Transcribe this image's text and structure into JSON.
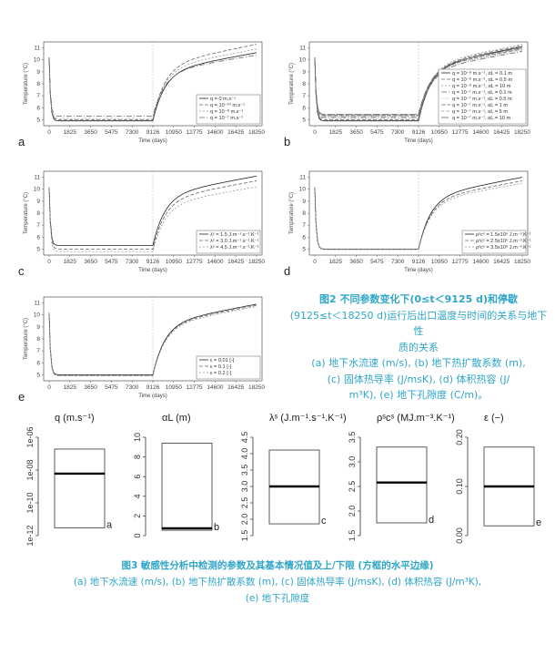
{
  "figure2": {
    "x_label": "Time (days)",
    "y_label": "Temperature (°C)",
    "x_ticks": [
      "0",
      "1825",
      "3650",
      "5475",
      "7300",
      "9126",
      "10950",
      "12775",
      "14600",
      "16425",
      "18250"
    ],
    "y_ticks": [
      "5",
      "6",
      "7",
      "8",
      "9",
      "10",
      "11"
    ],
    "panels": [
      {
        "letter": "a",
        "legend": [
          "q = 0 m.s⁻¹",
          "q = 10⁻¹⁰ m.s⁻¹",
          "q = 10⁻⁸ m.s⁻¹",
          "q = 10⁻⁷ m.s⁻¹"
        ]
      },
      {
        "letter": "b",
        "legend": [
          "q = 10⁻⁸ m.s⁻¹, αL = 0.1 m",
          "q = 10⁻⁸ m.s⁻¹, αL = 0.5 m",
          "q = 10⁻⁸ m.s⁻¹, αL = 10 m",
          "q = 10⁻⁷ m.s⁻¹, αL = 0.1 m",
          "q = 10⁻⁷ m.s⁻¹, αL = 0.5 m",
          "q = 10⁻⁷ m.s⁻¹, αL = 1 m",
          "q = 10⁻⁷ m.s⁻¹, αL = 5 m",
          "q = 10⁻⁷ m.s⁻¹, αL = 10 m"
        ]
      },
      {
        "letter": "c",
        "legend": [
          "λˢ = 1.5 J.m⁻¹.s⁻¹.K⁻¹",
          "λˢ = 3.0 J.m⁻¹.s⁻¹.K⁻¹",
          "λˢ = 4.5 J.m⁻¹.s⁻¹.K⁻¹"
        ]
      },
      {
        "letter": "d",
        "legend": [
          "ρˢcˢ = 1.5x10⁶ J.m⁻³.K⁻¹",
          "ρˢcˢ = 2.5x10⁶ J.m⁻³.K⁻¹",
          "ρˢcˢ = 3.5x10⁶ J.m⁻³.K⁻¹"
        ]
      },
      {
        "letter": "e",
        "legend": [
          "ε = 0.01 [-]",
          "ε = 0.1 [-]",
          "ε = 0.2 [-]"
        ]
      }
    ]
  },
  "caption2": {
    "title": "图2 不同参数变化下(0≤t＜9125 d)和停歇",
    "lines": [
      "(9125≤t＜18250 d)运行后出口温度与时间的关系与地下性",
      "质的关系",
      "(a) 地下水流速 (m/s), (b) 地下热扩散系数 (m),",
      "(c) 固体热导率 (J/msK), (d) 体积热容 (J/",
      "m³K), (e) 地下孔隙度 (C/m)。"
    ]
  },
  "figure3": {
    "panels": [
      {
        "title": "q (m.s⁻¹)",
        "letter": "a",
        "ticks": [
          "1e-06",
          "1e-08",
          "1e-10",
          "1e-12"
        ]
      },
      {
        "title": "αL (m)",
        "letter": "b",
        "ticks": [
          "10",
          "8",
          "6",
          "4",
          "2",
          "0"
        ]
      },
      {
        "title": "λˢ (J.m⁻¹.s⁻¹.K⁻¹)",
        "letter": "c",
        "ticks": [
          "4.5",
          "4.0",
          "3.5",
          "3.0",
          "2.5",
          "2.0",
          "1.5"
        ]
      },
      {
        "title": "ρˢcˢ (MJ.m⁻³.K⁻¹)",
        "letter": "d",
        "ticks": [
          "3.5",
          "3.0",
          "2.5",
          "2.0",
          "1.5"
        ]
      },
      {
        "title": "ε (−)",
        "letter": "e",
        "ticks": [
          "0.20",
          "0.10",
          "0.00"
        ]
      }
    ]
  },
  "caption3": {
    "title": "图3 敏感性分析中检测的参数及其基本情况值及上/下限 (方框的水平边缘)",
    "line2": "(a) 地下水流速 (m/s), (b) 地下热扩散系数 (m), (c) 固体热导率 (J/msK), (d) 体积热容 (J/m³K),",
    "line3": "(e) 地下孔隙度"
  }
}
